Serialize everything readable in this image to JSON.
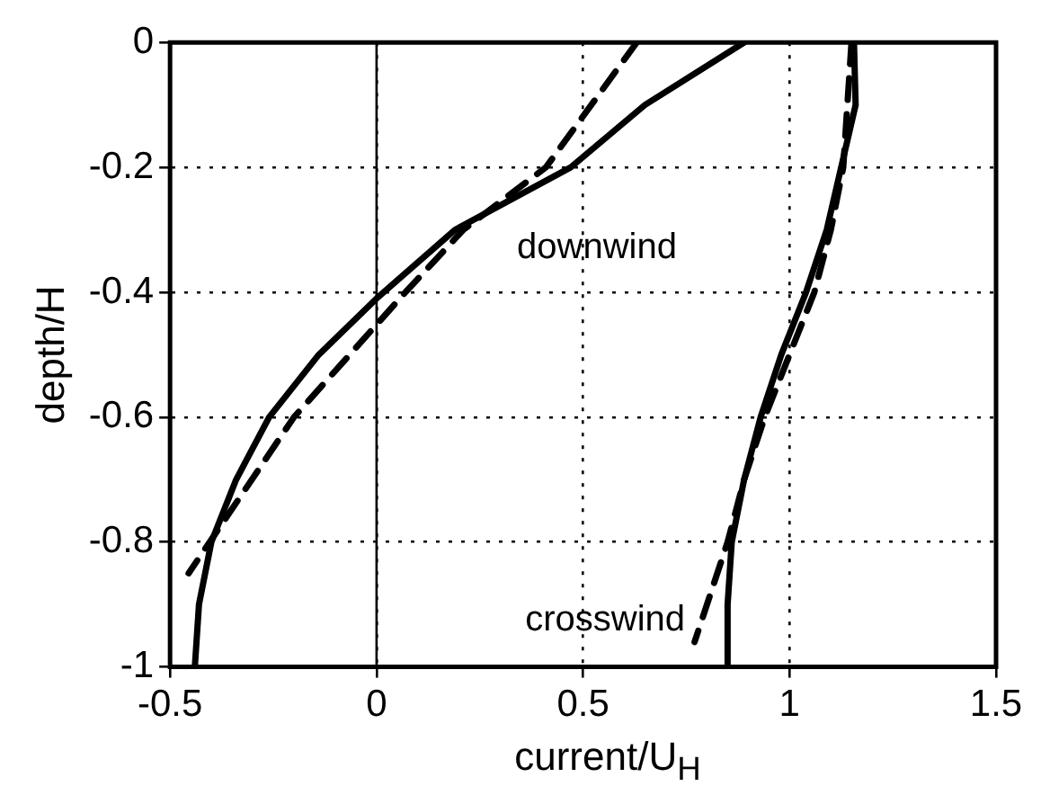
{
  "chart_data": {
    "type": "line",
    "xlabel": "current/U$_{H}$",
    "ylabel": "depth/H",
    "series": [
      {
        "color": "#000000",
        "line_style": "solid",
        "x": [
          0.89,
          0.65,
          0.47,
          0.19,
          0.0,
          -0.14,
          -0.26,
          -0.34,
          -0.4,
          -0.43,
          -0.44
        ],
        "values": [
          0,
          -0.1,
          -0.2,
          -0.3,
          -0.41,
          -0.5,
          -0.6,
          -0.7,
          -0.8,
          -0.9,
          -1
        ]
      },
      {
        "color": "#000000",
        "line_style": "dashed",
        "x": [
          0.63,
          0.41,
          0.21,
          0.07,
          -0.2,
          -0.455
        ],
        "values": [
          0,
          -0.2,
          -0.3,
          -0.4,
          -0.6,
          -0.85
        ]
      },
      {
        "color": "#000000",
        "line_style": "solid",
        "x": [
          1.156,
          1.16,
          1.125,
          1.09,
          1.04,
          0.98,
          0.93,
          0.89,
          0.86,
          0.85,
          0.85
        ],
        "values": [
          0,
          -0.1,
          -0.2,
          -0.3,
          -0.4,
          -0.5,
          -0.6,
          -0.7,
          -0.8,
          -0.9,
          -1
        ]
      },
      {
        "color": "#000000",
        "line_style": "dashed",
        "x": [
          1.15,
          1.13,
          1.1,
          1.06,
          1.0,
          0.94,
          0.89,
          0.85,
          0.77
        ],
        "values": [
          0,
          -0.2,
          -0.3,
          -0.4,
          -0.5,
          -0.6,
          -0.7,
          -0.8,
          -0.96
        ]
      }
    ],
    "annotations": [
      "downwind",
      "crosswind"
    ],
    "ref_lines": [
      {
        "axis": "x",
        "value": 0,
        "color": "#000000",
        "line_style": "solid"
      }
    ],
    "xlim": [
      -0.5,
      1.5
    ],
    "xticks": [
      -0.5,
      0,
      0.5,
      1,
      1.5
    ],
    "ylim": [
      -1,
      0
    ],
    "yticks": [
      -1,
      -0.8,
      -0.6,
      -0.4,
      -0.2,
      0
    ],
    "grid": true,
    "legend": false,
    "marker": "none"
  }
}
